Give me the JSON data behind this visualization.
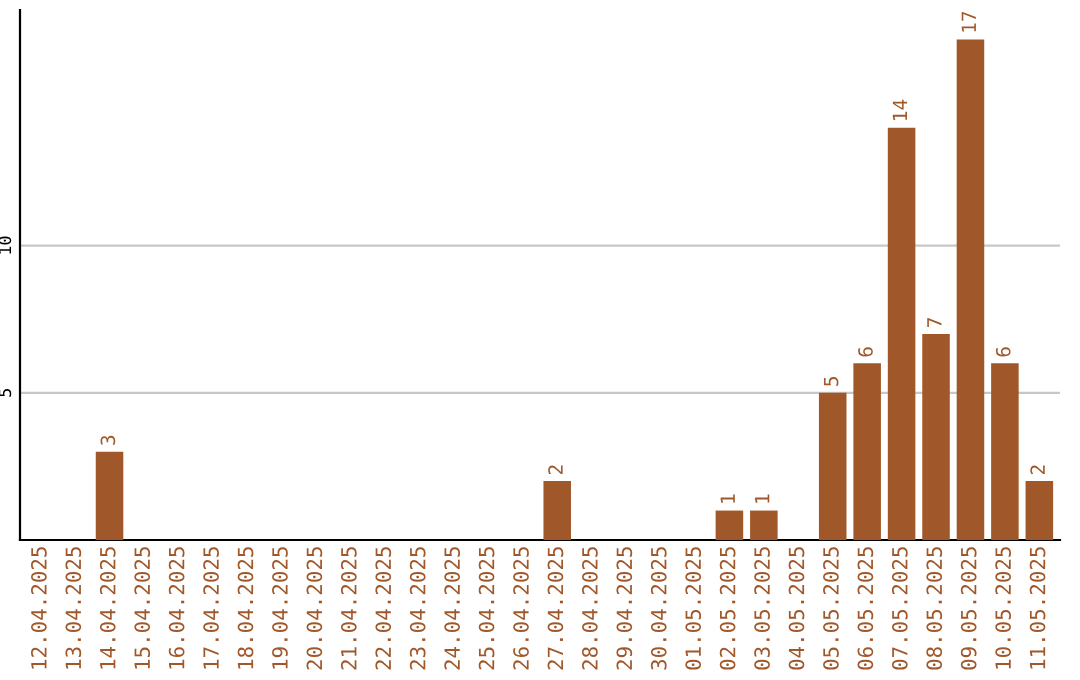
{
  "chart_data": {
    "type": "bar",
    "categories": [
      "12.04.2025",
      "13.04.2025",
      "14.04.2025",
      "15.04.2025",
      "16.04.2025",
      "17.04.2025",
      "18.04.2025",
      "19.04.2025",
      "20.04.2025",
      "21.04.2025",
      "22.04.2025",
      "23.04.2025",
      "24.04.2025",
      "25.04.2025",
      "26.04.2025",
      "27.04.2025",
      "28.04.2025",
      "29.04.2025",
      "30.04.2025",
      "01.05.2025",
      "02.05.2025",
      "03.05.2025",
      "04.05.2025",
      "05.05.2025",
      "06.05.2025",
      "07.05.2025",
      "08.05.2025",
      "09.05.2025",
      "10.05.2025",
      "11.05.2025"
    ],
    "values": [
      0,
      0,
      3,
      0,
      0,
      0,
      0,
      0,
      0,
      0,
      0,
      0,
      0,
      0,
      0,
      2,
      0,
      0,
      0,
      0,
      1,
      1,
      0,
      5,
      6,
      14,
      7,
      17,
      6,
      2
    ],
    "value_labels": [
      null,
      null,
      "3",
      null,
      null,
      null,
      null,
      null,
      null,
      null,
      null,
      null,
      null,
      null,
      null,
      "2",
      null,
      null,
      null,
      null,
      "1",
      "1",
      null,
      "5",
      "6",
      "14",
      "7",
      "17",
      "6",
      "2"
    ],
    "color": "#a0582a",
    "ylim": [
      0,
      18
    ],
    "yticks": [
      5,
      10
    ],
    "grid": "y",
    "legend": false
  }
}
